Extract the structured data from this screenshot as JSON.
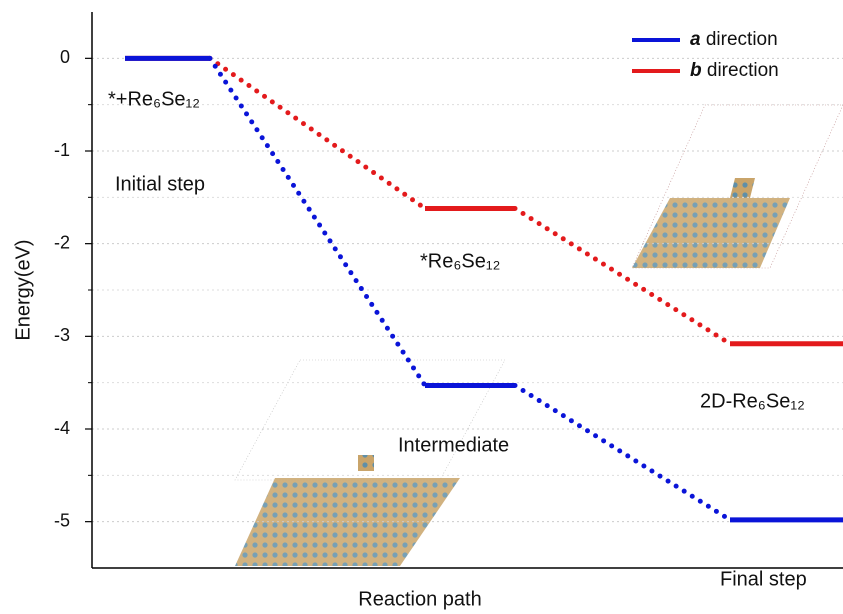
{
  "chart_data": {
    "type": "line",
    "y_label": "Energy(eV)",
    "x_label": "Reaction path",
    "series": [
      {
        "name": "b direction",
        "color": "#e31a1c",
        "values": [
          0,
          -1.62,
          -3.08
        ]
      },
      {
        "name": "a direction",
        "color": "#0a14d8",
        "values": [
          0,
          -3.53,
          -4.98
        ]
      }
    ],
    "ylim": [
      -5.5,
      0.5
    ],
    "yticks": [
      0,
      -1,
      -2,
      -3,
      -4,
      -5
    ],
    "yminorticks": [
      -0.5,
      -1.5,
      -2.5,
      -3.5,
      -4.5
    ],
    "grid": true,
    "legend": "upper right",
    "annotations": [
      "*+Re₆Se₁₂",
      "Initial step",
      "*Re₆Se₁₂",
      "Intermediate",
      "2D-Re₆Se₁₂",
      "Final step"
    ]
  }
}
